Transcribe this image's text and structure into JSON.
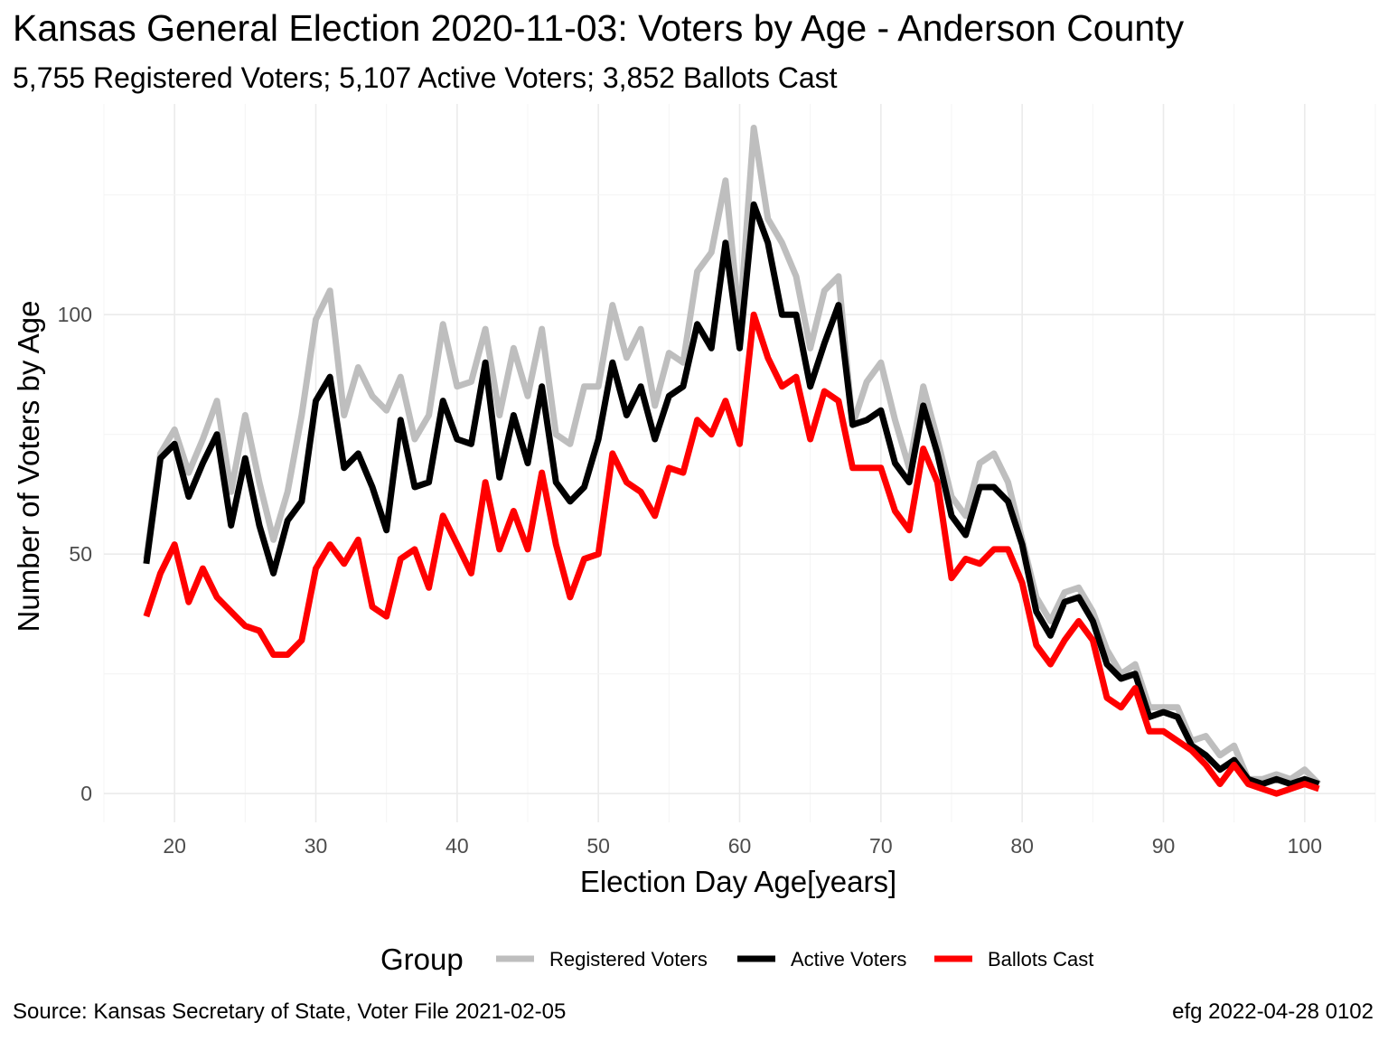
{
  "title": "Kansas General Election 2020-11-03:  Voters by Age - Anderson County",
  "subtitle": "5,755 Registered Voters; 5,107 Active Voters; 3,852 Ballots Cast",
  "caption_left": "Source:  Kansas Secretary of State, Voter File  2021-02-05",
  "caption_right": "efg 2022-04-28 0102",
  "chart_data": {
    "type": "line",
    "title": "Kansas General Election 2020-11-03:  Voters by Age - Anderson County",
    "subtitle": "5,755 Registered Voters; 5,107 Active Voters; 3,852 Ballots Cast",
    "xlabel": "Election Day Age[years]",
    "ylabel": "Number of Voters by Age",
    "xlim": [
      15,
      105
    ],
    "ylim": [
      -6,
      144
    ],
    "x_ticks": [
      20,
      30,
      40,
      50,
      60,
      70,
      80,
      90,
      100
    ],
    "y_ticks": [
      0,
      50,
      100
    ],
    "grid": true,
    "legend_title": "Group",
    "legend_position": "bottom",
    "x": [
      18,
      19,
      20,
      21,
      22,
      23,
      24,
      25,
      26,
      27,
      28,
      29,
      30,
      31,
      32,
      33,
      34,
      35,
      36,
      37,
      38,
      39,
      40,
      41,
      42,
      43,
      44,
      45,
      46,
      47,
      48,
      49,
      50,
      51,
      52,
      53,
      54,
      55,
      56,
      57,
      58,
      59,
      60,
      61,
      62,
      63,
      64,
      65,
      66,
      67,
      68,
      69,
      70,
      71,
      72,
      73,
      74,
      75,
      76,
      77,
      78,
      79,
      80,
      81,
      82,
      83,
      84,
      85,
      86,
      87,
      88,
      89,
      90,
      91,
      92,
      93,
      94,
      95,
      96,
      97,
      98,
      99,
      100,
      101
    ],
    "series": [
      {
        "name": "Registered Voters",
        "color": "#BEBEBE",
        "values": [
          49,
          71,
          76,
          67,
          74,
          82,
          63,
          79,
          65,
          53,
          63,
          79,
          99,
          105,
          79,
          89,
          83,
          80,
          87,
          74,
          79,
          98,
          85,
          86,
          97,
          79,
          93,
          83,
          97,
          75,
          73,
          85,
          85,
          102,
          91,
          97,
          81,
          92,
          90,
          109,
          113,
          128,
          98,
          139,
          120,
          115,
          108,
          93,
          105,
          108,
          77,
          86,
          90,
          78,
          68,
          85,
          74,
          62,
          58,
          69,
          71,
          65,
          53,
          41,
          36,
          42,
          43,
          38,
          30,
          25,
          27,
          18,
          18,
          18,
          11,
          12,
          8,
          10,
          3,
          3,
          4,
          3,
          5,
          2
        ]
      },
      {
        "name": "Active Voters",
        "color": "#000000",
        "values": [
          48,
          70,
          73,
          62,
          69,
          75,
          56,
          70,
          56,
          46,
          57,
          61,
          82,
          87,
          68,
          71,
          64,
          55,
          78,
          64,
          65,
          82,
          74,
          73,
          90,
          66,
          79,
          69,
          85,
          65,
          61,
          64,
          74,
          90,
          79,
          85,
          74,
          83,
          85,
          98,
          93,
          115,
          93,
          123,
          115,
          100,
          100,
          85,
          94,
          102,
          77,
          78,
          80,
          69,
          65,
          81,
          71,
          58,
          54,
          64,
          64,
          61,
          52,
          38,
          33,
          40,
          41,
          36,
          27,
          24,
          25,
          16,
          17,
          16,
          10,
          8,
          5,
          7,
          3,
          2,
          3,
          2,
          3,
          2
        ]
      },
      {
        "name": "Ballots Cast",
        "color": "#FF0000",
        "values": [
          37,
          46,
          52,
          40,
          47,
          41,
          38,
          35,
          34,
          29,
          29,
          32,
          47,
          52,
          48,
          53,
          39,
          37,
          49,
          51,
          43,
          58,
          52,
          46,
          65,
          51,
          59,
          51,
          67,
          52,
          41,
          49,
          50,
          71,
          65,
          63,
          58,
          68,
          67,
          78,
          75,
          82,
          73,
          100,
          91,
          85,
          87,
          74,
          84,
          82,
          68,
          68,
          68,
          59,
          55,
          72,
          65,
          45,
          49,
          48,
          51,
          51,
          44,
          31,
          27,
          32,
          36,
          32,
          20,
          18,
          22,
          13,
          13,
          11,
          9,
          6,
          2,
          6,
          2,
          1,
          0,
          1,
          2,
          1
        ]
      }
    ]
  }
}
